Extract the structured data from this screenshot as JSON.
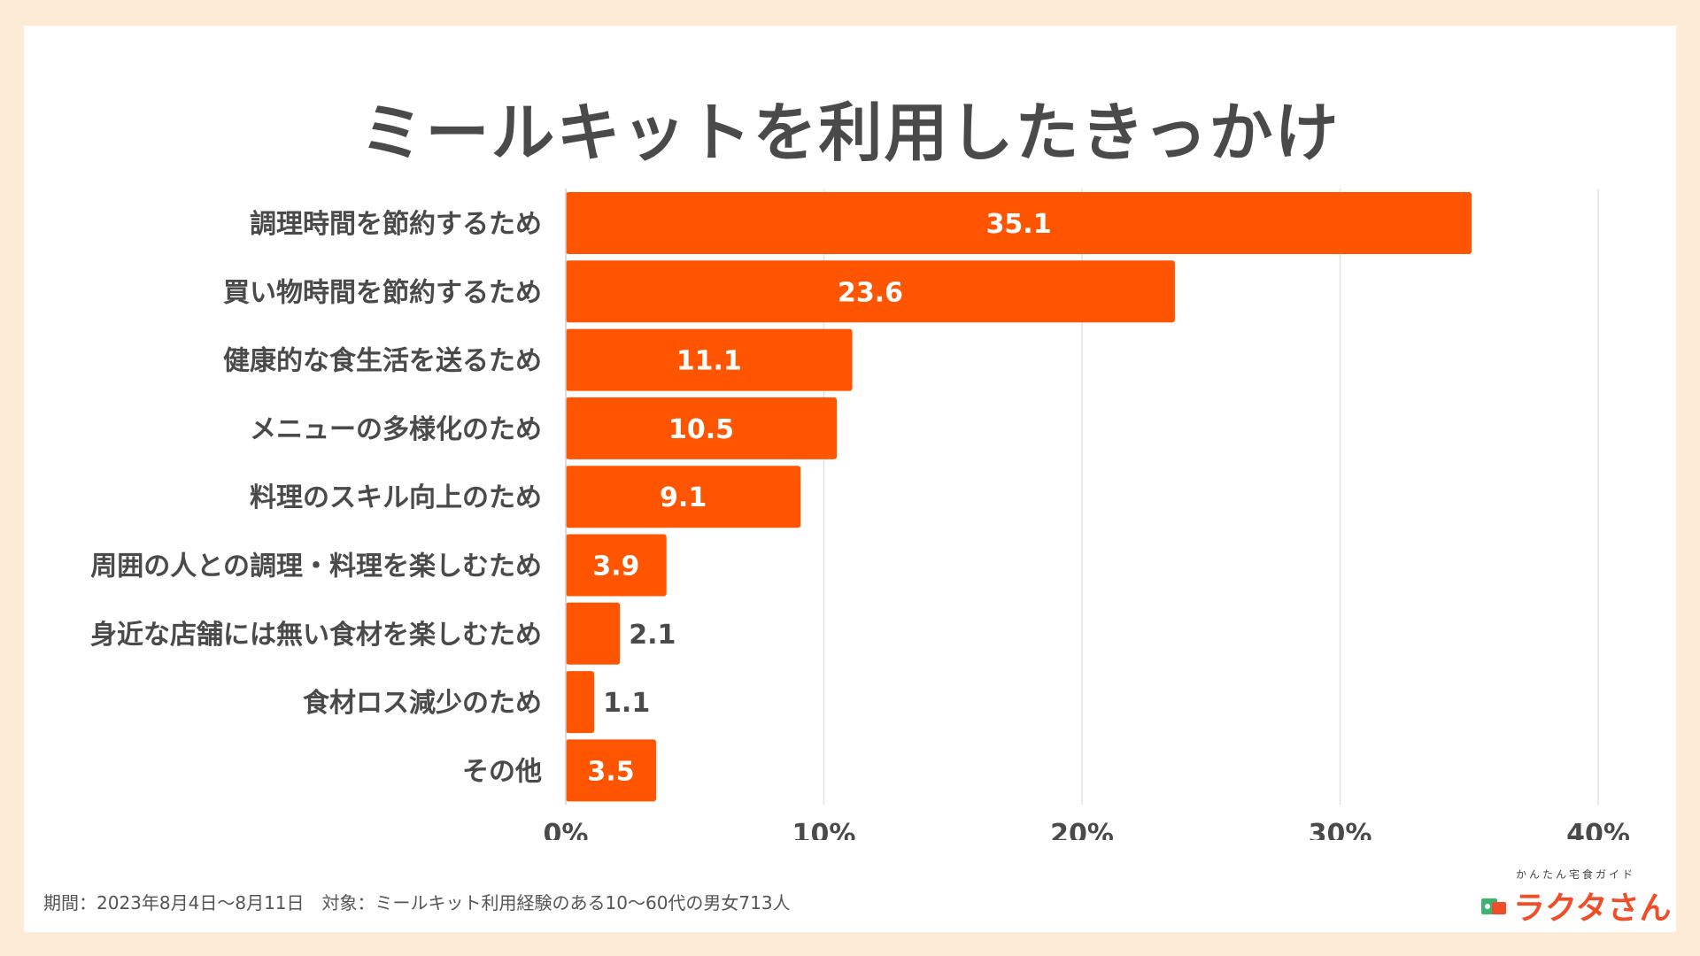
{
  "chart_data": {
    "type": "bar",
    "orientation": "horizontal",
    "title": "ミールキットを利用したきっかけ",
    "categories": [
      "調理時間を節約するため",
      "買い物時間を節約するため",
      "健康的な食生活を送るため",
      "メニューの多様化のため",
      "料理のスキル向上のため",
      "周囲の人との調理・料理を楽しむため",
      "身近な店舗には無い食材を楽しむため",
      "食材ロス減少のため",
      "その他"
    ],
    "values": [
      35.1,
      23.6,
      11.1,
      10.5,
      9.1,
      3.9,
      2.1,
      1.1,
      3.5
    ],
    "data_labels": [
      "35.1",
      "23.6",
      "11.1",
      "10.5",
      "9.1",
      "3.9",
      "2.1",
      "1.1",
      "3.5"
    ],
    "xlim": [
      0,
      40
    ],
    "x_ticks": [
      0,
      10,
      20,
      30,
      40
    ],
    "x_tick_labels": [
      "0%",
      "10%",
      "20%",
      "30%",
      "40%"
    ],
    "grid": true,
    "bar_color": "#ff5500",
    "xlabel": "",
    "ylabel": ""
  },
  "footnote": "期間：2023年8月4日〜8月11日　対象：ミールキット利用経験のある10〜60代の男女713人",
  "logo": {
    "tagline": "かんたん宅食ガイド",
    "wordmark": "ラクタさん",
    "icon": "food-box-icon"
  },
  "colors": {
    "background": "#fdebd6",
    "card": "#ffffff",
    "text": "#4a4a4a",
    "accent": "#ee4f2a"
  }
}
